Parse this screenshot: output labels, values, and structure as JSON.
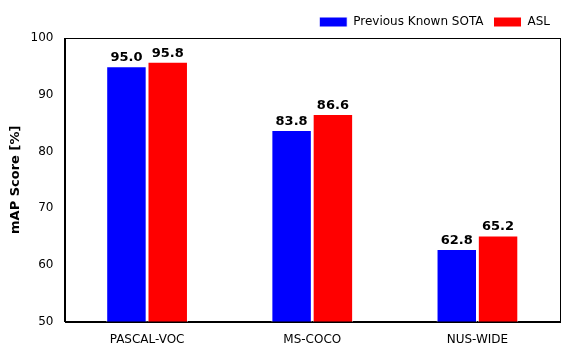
{
  "chart_data": {
    "type": "bar",
    "y_label": "mAP Score [%]",
    "categories": [
      "PASCAL-VOC",
      "MS-COCO",
      "NUS-WIDE"
    ],
    "series": [
      {
        "name": "Previous Known SOTA",
        "color": "#0000ff",
        "values": [
          95.0,
          83.8,
          62.8
        ],
        "value_labels": [
          "95.0",
          "83.8",
          "62.8"
        ]
      },
      {
        "name": "ASL",
        "color": "#ff0000",
        "values": [
          95.8,
          86.6,
          65.2
        ],
        "value_labels": [
          "95.8",
          "86.6",
          "65.2"
        ]
      }
    ],
    "ylim": [
      50,
      100
    ],
    "yticks": [
      50,
      60,
      70,
      80,
      90,
      100
    ],
    "grid": false,
    "legend": "upper right",
    "data_labels": true
  }
}
